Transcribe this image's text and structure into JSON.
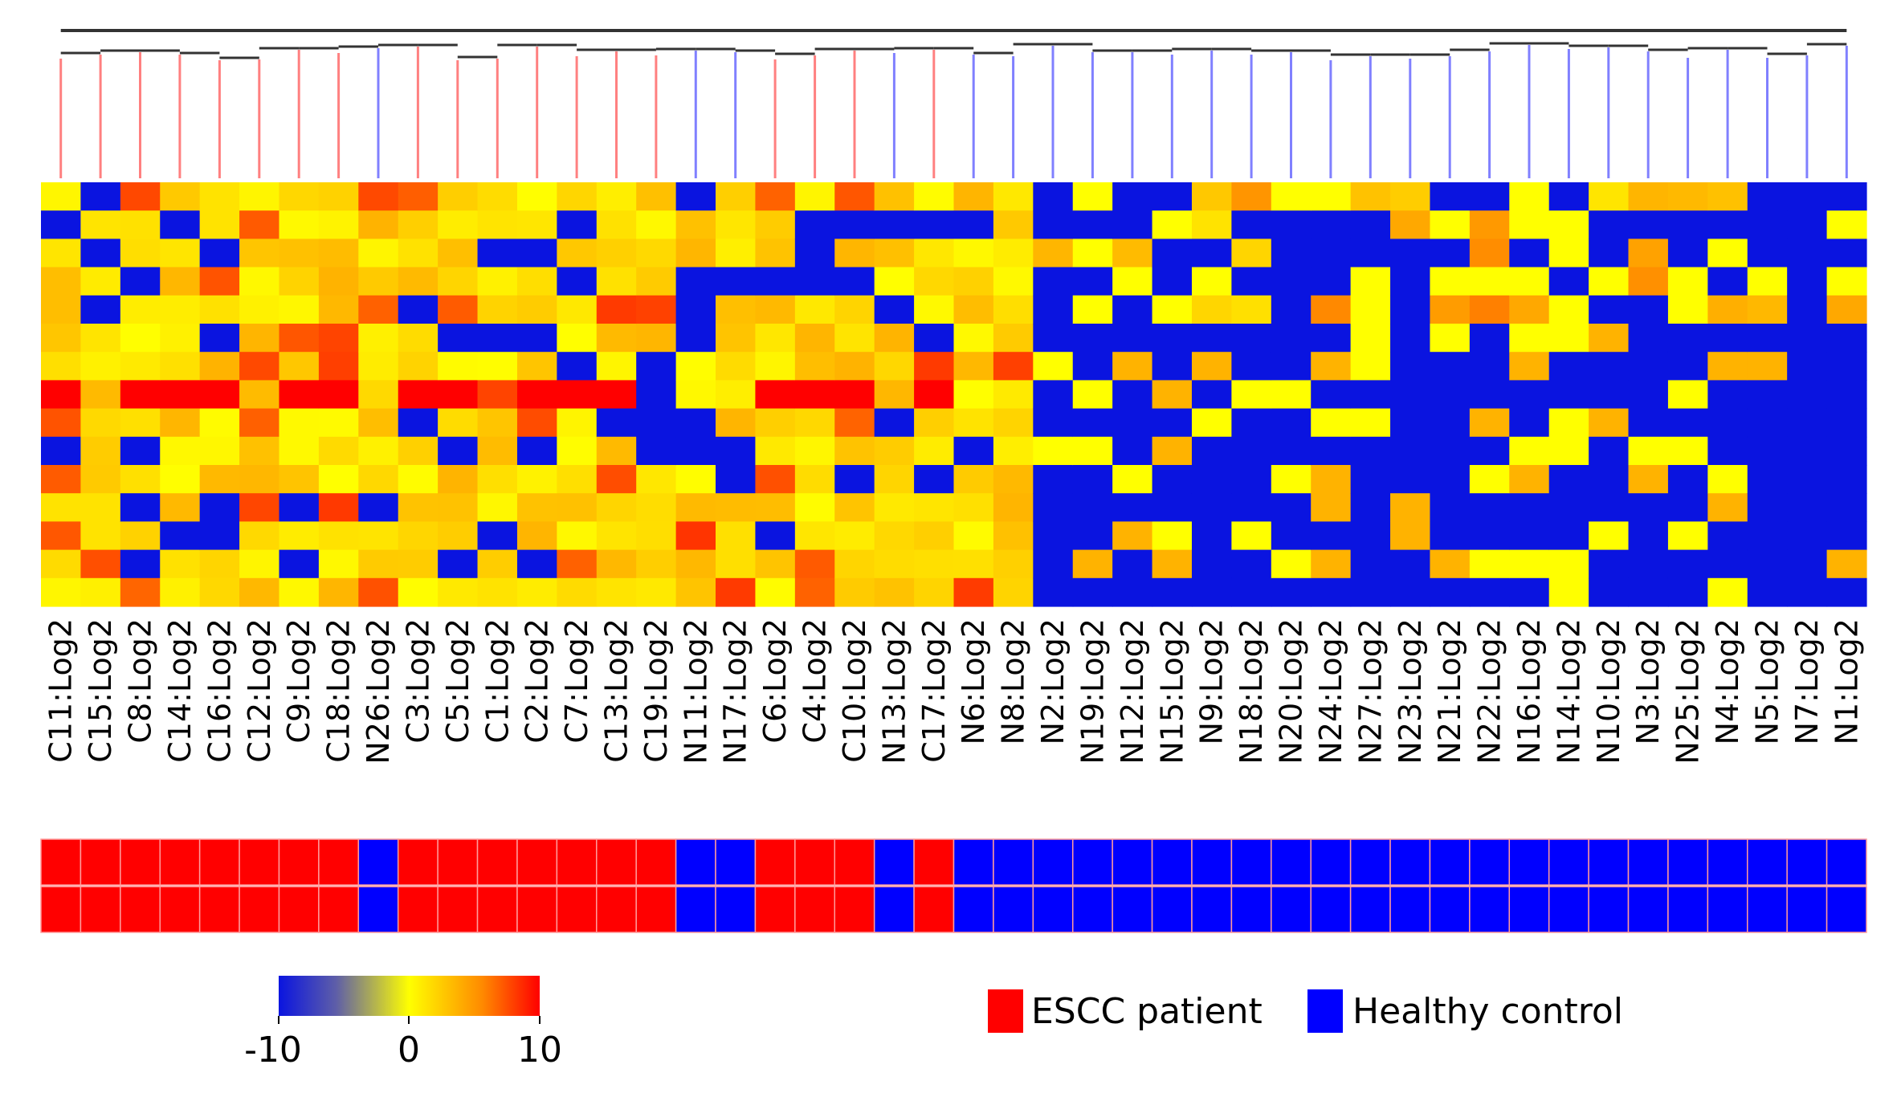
{
  "chart_data": {
    "type": "heatmap",
    "title": "",
    "samples": [
      "C11:Log2",
      "C15:Log2",
      "C8:Log2",
      "C14:Log2",
      "C16:Log2",
      "C12:Log2",
      "C9:Log2",
      "C18:Log2",
      "N26:Log2",
      "C3:Log2",
      "C5:Log2",
      "C1:Log2",
      "C2:Log2",
      "C7:Log2",
      "C13:Log2",
      "C19:Log2",
      "N11:Log2",
      "N17:Log2",
      "C6:Log2",
      "C4:Log2",
      "C10:Log2",
      "N13:Log2",
      "C17:Log2",
      "N6:Log2",
      "N8:Log2",
      "N2:Log2",
      "N19:Log2",
      "N12:Log2",
      "N15:Log2",
      "N9:Log2",
      "N18:Log2",
      "N20:Log2",
      "N24:Log2",
      "N27:Log2",
      "N23:Log2",
      "N21:Log2",
      "N22:Log2",
      "N16:Log2",
      "N14:Log2",
      "N10:Log2",
      "N3:Log2",
      "N25:Log2",
      "N4:Log2",
      "N5:Log2",
      "N7:Log2",
      "N1:Log2"
    ],
    "group": [
      "ESCC",
      "ESCC",
      "ESCC",
      "ESCC",
      "ESCC",
      "ESCC",
      "ESCC",
      "ESCC",
      "Healthy",
      "ESCC",
      "ESCC",
      "ESCC",
      "ESCC",
      "ESCC",
      "ESCC",
      "ESCC",
      "Healthy",
      "Healthy",
      "ESCC",
      "ESCC",
      "ESCC",
      "Healthy",
      "ESCC",
      "Healthy",
      "Healthy",
      "Healthy",
      "Healthy",
      "Healthy",
      "Healthy",
      "Healthy",
      "Healthy",
      "Healthy",
      "Healthy",
      "Healthy",
      "Healthy",
      "Healthy",
      "Healthy",
      "Healthy",
      "Healthy",
      "Healthy",
      "Healthy",
      "Healthy",
      "Healthy",
      "Healthy",
      "Healthy",
      "Healthy"
    ],
    "color_scale": {
      "min_label": "-10",
      "mid_label": "0",
      "max_label": "10",
      "min": -10,
      "max": 10,
      "stops": [
        "#0a14e0",
        "#ffff00",
        "#ff0000"
      ]
    },
    "legend": [
      {
        "label": "ESCC patient",
        "color": "#ff0000"
      },
      {
        "label": "Healthy control",
        "color": "#0000ff"
      }
    ],
    "rows": 15,
    "heatmap_seed": 20240611
  }
}
